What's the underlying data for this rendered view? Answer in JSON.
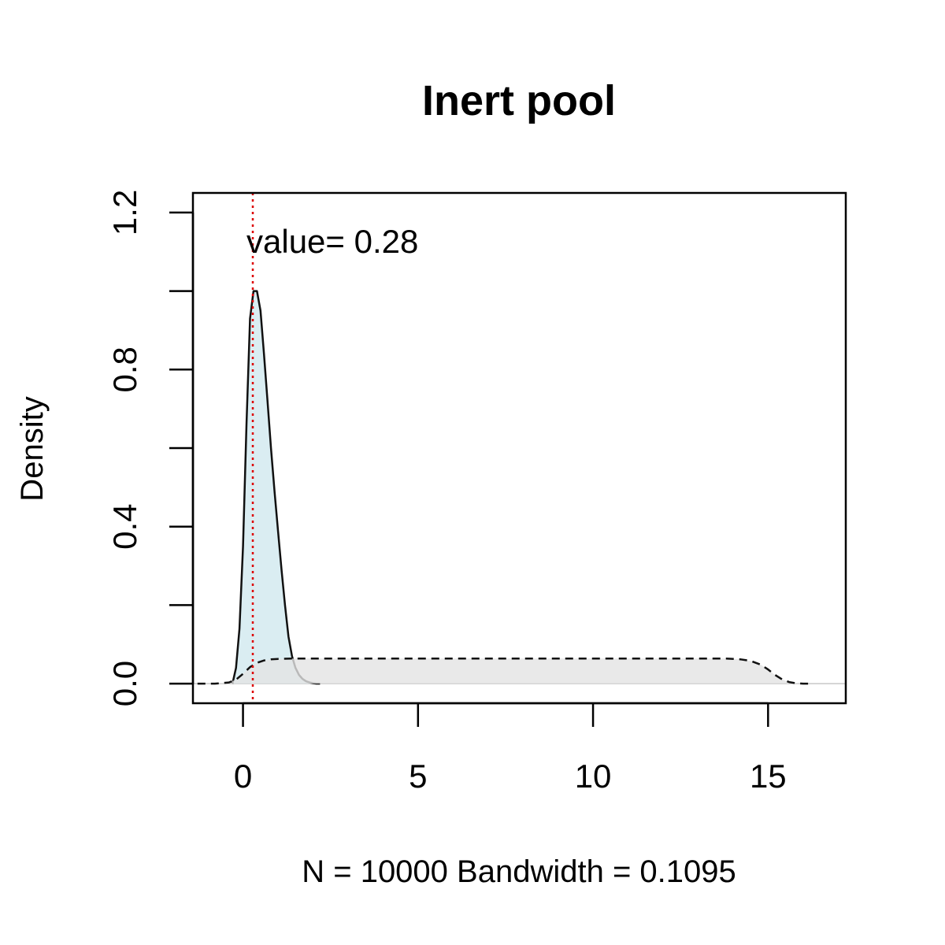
{
  "chart_data": {
    "type": "area",
    "title": "Inert pool",
    "xlabel": "N = 10000   Bandwidth = 0.1095",
    "ylabel": "Density",
    "xlim": [
      -1.43,
      17.22
    ],
    "ylim": [
      -0.05,
      1.25
    ],
    "x_ticks": [
      0,
      5,
      10,
      15
    ],
    "y_ticks": [
      0.0,
      0.2,
      0.4,
      0.6,
      0.8,
      1.0,
      1.2
    ],
    "y_tick_labels": [
      "0.0",
      "",
      "0.4",
      "",
      "0.8",
      "",
      "1.2"
    ],
    "grid": false,
    "legend": "none",
    "annotation": {
      "text": "value= 0.28",
      "x": 0.1,
      "y": 1.13
    },
    "reference_line": {
      "x": 0.28,
      "color": "#dd0000",
      "style": "dotted"
    },
    "series": [
      {
        "style": "solid",
        "fill": "#d1e9ef",
        "x": [
          -0.3,
          -0.2,
          -0.1,
          0.0,
          0.1,
          0.2,
          0.3,
          0.4,
          0.5,
          0.6,
          0.7,
          0.8,
          0.9,
          1.0,
          1.1,
          1.2,
          1.3,
          1.4,
          1.5,
          1.6,
          1.7,
          1.8,
          1.9,
          2.0,
          2.1,
          2.2
        ],
        "y": [
          0.0,
          0.04,
          0.14,
          0.35,
          0.66,
          0.93,
          1.0,
          1.0,
          0.95,
          0.84,
          0.72,
          0.6,
          0.49,
          0.39,
          0.29,
          0.2,
          0.12,
          0.07,
          0.04,
          0.022,
          0.012,
          0.006,
          0.003,
          0.001,
          0.0,
          0.0
        ]
      },
      {
        "style": "dashed",
        "fill": "#e3e3e3",
        "x": [
          -1.3,
          -0.8,
          -0.4,
          -0.2,
          0.0,
          0.2,
          0.4,
          0.6,
          0.8,
          1.0,
          1.5,
          3.0,
          6.0,
          9.0,
          12.0,
          13.8,
          14.2,
          14.5,
          14.8,
          15.0,
          15.2,
          15.4,
          15.6,
          15.8,
          16.0,
          16.3
        ],
        "y": [
          0.0,
          0.0,
          0.003,
          0.01,
          0.025,
          0.042,
          0.053,
          0.059,
          0.062,
          0.063,
          0.064,
          0.064,
          0.064,
          0.064,
          0.064,
          0.064,
          0.062,
          0.058,
          0.048,
          0.036,
          0.022,
          0.011,
          0.004,
          0.001,
          0.0,
          0.0
        ]
      }
    ]
  }
}
